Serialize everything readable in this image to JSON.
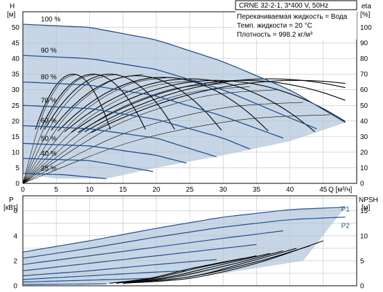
{
  "header": {
    "model": "CRNE 32-2-1, 3*400 V, 50Hz",
    "fluid_line": "Перекачиваемая жидкость = Вода",
    "temp_line": "Темп. жидкости = 20 °C",
    "density_line": "Плотность = 998.2 кг/м³"
  },
  "colors": {
    "envelope_fill": "#c7d6e6",
    "curve_blue": "#1f4e8c",
    "curve_black": "#000000",
    "grid": "#bfbfbf"
  },
  "chart_data": [
    {
      "type": "line",
      "title": "",
      "xlabel": "Q [м³/ч]",
      "ylabel_left_line1": "H",
      "ylabel_left_line2": "[м]",
      "ylabel_right_line1": "eta",
      "ylabel_right_line2": "[%]",
      "xlim": [
        0,
        50
      ],
      "ylim": [
        0,
        55
      ],
      "y2lim": [
        0,
        110
      ],
      "grid": true,
      "x_ticks": [
        0,
        5,
        10,
        15,
        20,
        25,
        30,
        35,
        40,
        45
      ],
      "y_ticks": [
        0,
        5,
        10,
        15,
        20,
        25,
        30,
        35,
        40,
        45,
        50
      ],
      "y2_ticks": [
        0,
        10,
        20,
        30,
        40,
        50,
        60,
        70,
        80,
        90,
        100
      ],
      "speed_curves": [
        {
          "name": "100 %",
          "q": [
            0,
            10,
            20,
            30,
            40,
            48.3
          ],
          "h": [
            51,
            50,
            46,
            39,
            30,
            19.5
          ]
        },
        {
          "name": "90 %",
          "q": [
            0,
            10,
            20,
            30,
            40,
            44
          ],
          "h": [
            41,
            40,
            36.5,
            30,
            21,
            17.5
          ]
        },
        {
          "name": "80 %",
          "q": [
            0,
            10,
            20,
            30,
            39
          ],
          "h": [
            32.5,
            31.5,
            28,
            21.5,
            14.5
          ]
        },
        {
          "name": "70 %",
          "q": [
            0,
            10,
            20,
            30,
            34
          ],
          "h": [
            25,
            24,
            20.5,
            14.5,
            11
          ]
        },
        {
          "name": "60 %",
          "q": [
            0,
            10,
            20,
            29
          ],
          "h": [
            18.5,
            17.5,
            14.5,
            8.5
          ]
        },
        {
          "name": "50 %",
          "q": [
            0,
            10,
            20,
            24.5
          ],
          "h": [
            12.8,
            12,
            9,
            6.5
          ]
        },
        {
          "name": "40 %",
          "q": [
            0,
            10,
            19.5
          ],
          "h": [
            8,
            7.3,
            3.8
          ]
        },
        {
          "name": "25 %",
          "q": [
            0,
            6,
            12.5
          ],
          "h": [
            3.2,
            2.8,
            1.5
          ]
        }
      ],
      "envelope": {
        "q": [
          0,
          10,
          20,
          30,
          40,
          48.3,
          40,
          30,
          20,
          12.5,
          5,
          0
        ],
        "h": [
          51,
          50,
          46,
          39,
          30,
          19.5,
          13.5,
          9,
          5,
          1.5,
          1.5,
          3.2
        ]
      },
      "eta_curves": [
        {
          "peak_q": 7.5,
          "peak_eta": 70
        },
        {
          "peak_q": 10.5,
          "peak_eta": 70
        },
        {
          "peak_q": 13,
          "peak_eta": 70
        },
        {
          "peak_q": 17,
          "peak_eta": 69
        },
        {
          "peak_q": 21,
          "peak_eta": 68
        },
        {
          "peak_q": 25,
          "peak_eta": 67
        },
        {
          "peak_q": 29,
          "peak_eta": 66
        },
        {
          "peak_q": 33,
          "peak_eta": 66
        },
        {
          "peak_q": 37,
          "peak_eta": 67
        },
        {
          "peak_q": 41,
          "peak_eta": 66
        }
      ]
    },
    {
      "type": "line",
      "title": "",
      "ylabel_left_line1": "P",
      "ylabel_left_line2": "[кВт]",
      "ylabel_right_line1": "NPSH",
      "ylabel_right_line2": "[м]",
      "xlim": [
        0,
        50
      ],
      "ylim": [
        0,
        7.2
      ],
      "y2lim": [
        0,
        18
      ],
      "grid": true,
      "y_ticks": [
        0,
        2,
        4,
        6
      ],
      "y2_ticks": [
        0,
        5,
        10,
        15
      ],
      "power_curves": [
        {
          "name": "P1",
          "q": [
            0,
            10,
            20,
            30,
            40,
            48.3
          ],
          "p": [
            2.7,
            3.6,
            4.6,
            5.5,
            6.1,
            6.3
          ]
        },
        {
          "name": "P2",
          "q": [
            0,
            10,
            20,
            30,
            40,
            48.3
          ],
          "p": [
            2.2,
            3.0,
            3.9,
            4.7,
            5.3,
            5.5
          ]
        },
        {
          "q": [
            0,
            10,
            20,
            30,
            39
          ],
          "p": [
            1.7,
            2.4,
            3.1,
            3.8,
            4.4
          ]
        },
        {
          "q": [
            0,
            10,
            20,
            30,
            35
          ],
          "p": [
            1.2,
            1.8,
            2.4,
            3.0,
            3.3
          ]
        },
        {
          "q": [
            0,
            10,
            20,
            29
          ],
          "p": [
            0.8,
            1.2,
            1.7,
            2.1
          ]
        },
        {
          "q": [
            0,
            10,
            20,
            24.5
          ],
          "p": [
            0.5,
            0.8,
            1.1,
            1.2
          ]
        },
        {
          "q": [
            0,
            10,
            19.5
          ],
          "p": [
            0.3,
            0.45,
            0.6
          ]
        },
        {
          "q": [
            0,
            12.5
          ],
          "p": [
            0.1,
            0.15
          ]
        }
      ],
      "npsh_curves": [
        {
          "q": [
            15,
            25,
            35,
            45
          ],
          "npsh": [
            0.5,
            1.5,
            4.5,
            9
          ]
        },
        {
          "q": [
            15,
            25,
            35,
            43
          ],
          "npsh": [
            0.5,
            1.8,
            4.8,
            8
          ]
        },
        {
          "q": [
            15,
            25,
            33,
            41
          ],
          "npsh": [
            0.5,
            1.8,
            4.5,
            7.5
          ]
        },
        {
          "q": [
            15,
            23,
            31,
            39
          ],
          "npsh": [
            0.5,
            1.8,
            4.2,
            7
          ]
        },
        {
          "q": [
            15,
            22,
            29,
            37
          ],
          "npsh": [
            0.5,
            1.8,
            4,
            6.5
          ]
        },
        {
          "q": [
            14,
            20,
            27,
            35
          ],
          "npsh": [
            0.5,
            1.6,
            3.8,
            6
          ]
        },
        {
          "q": [
            13,
            19,
            25,
            33
          ],
          "npsh": [
            0.5,
            1.5,
            3.4,
            5.5
          ]
        }
      ]
    }
  ]
}
